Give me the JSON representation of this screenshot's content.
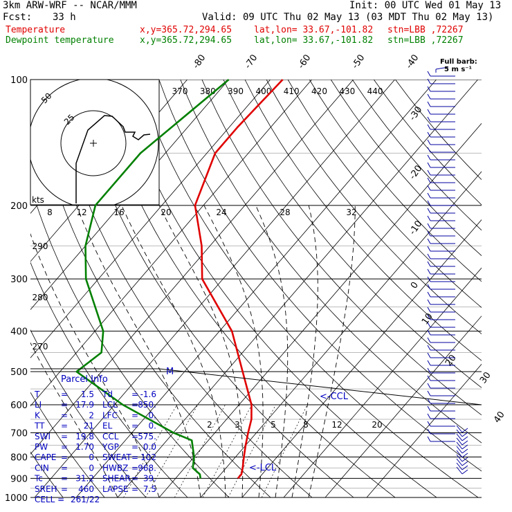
{
  "header": {
    "model": "3km ARW-WRF -- NCAR/MMM",
    "init": "Init: 00 UTC Wed 01 May 13",
    "fcst_label": "Fcst:",
    "fcst_value": "33 h",
    "valid": "Valid: 09 UTC Thu 02 May 13 (03 MDT Thu 02 May 13)",
    "temp_label": "Temperature",
    "dew_label": "Dewpoint temperature",
    "xy": "x,y=365.72,294.65",
    "latlon": "lat,lon= 33.67,-101.82",
    "stn": "stn=LBB ,72267"
  },
  "barb_legend": {
    "title": "Full barb:",
    "unit": "5 m s⁻¹"
  },
  "colors": {
    "temperature": "#e00000",
    "dewpoint": "#008000",
    "parcel": "#0000c0",
    "wind": "#0000a0"
  },
  "chart_data": {
    "type": "line",
    "title": "",
    "chart_kind": "skew-T log-P diagram",
    "pressure_levels": [
      "100",
      "200",
      "300",
      "400",
      "500",
      "600",
      "700",
      "800",
      "900",
      "1000"
    ],
    "isotherm_labels": [
      "-80",
      "-70",
      "-60",
      "-50",
      "-40",
      "-30",
      "-20",
      "-10",
      "0",
      "10",
      "20",
      "30",
      "40"
    ],
    "theta_labels": [
      "370",
      "380",
      "390",
      "400",
      "410",
      "420",
      "430",
      "440"
    ],
    "theta_left_labels": [
      "290",
      "280",
      "270"
    ],
    "mixing_ratio_labels": [
      "2",
      "3",
      "5",
      "8",
      "12",
      "20"
    ],
    "hodograph": {
      "speed_unit": "kts",
      "ring_labels": [
        "25",
        "50"
      ],
      "x_tick_labels": [
        "8",
        "12",
        "16",
        "20",
        "24",
        "28",
        "32"
      ]
    },
    "series": [
      {
        "name": "Temperature",
        "p": [
          100,
          130,
          150,
          200,
          250,
          300,
          400,
          500,
          600,
          650,
          700,
          750,
          800,
          850,
          880,
          900
        ],
        "t": [
          -57,
          -58,
          -58,
          -52,
          -42,
          -35,
          -17,
          -6,
          3,
          6,
          8,
          10,
          12,
          14,
          15,
          15
        ]
      },
      {
        "name": "Dewpoint temperature",
        "p": [
          100,
          150,
          200,
          250,
          300,
          400,
          450,
          500,
          600,
          700,
          730,
          800,
          850,
          880,
          900
        ],
        "t": [
          -70,
          -76,
          -76,
          -70,
          -63,
          -48,
          -44,
          -46,
          -28,
          -10,
          -4,
          0,
          2,
          5,
          6
        ]
      }
    ],
    "annotations": [
      "<-CCL",
      "<-LCL",
      "M"
    ]
  },
  "parcel_info": {
    "title": "Parcel Info",
    "rows": [
      {
        "l1": "T",
        "v1": "1.5",
        "l2": "Td",
        "v2": "-1.6"
      },
      {
        "l1": "LI",
        "v1": "17.9",
        "l2": "LCL",
        "v2": "850."
      },
      {
        "l1": "K",
        "v1": "2",
        "l2": "LFC",
        "v2": "0."
      },
      {
        "l1": "TT",
        "v1": "21",
        "l2": "EL",
        "v2": "0."
      },
      {
        "l1": "SWI",
        "v1": "19.8",
        "l2": "CCL",
        "v2": "575."
      },
      {
        "l1": "PW",
        "v1": "1.70",
        "l2": "YGP",
        "v2": "0.0"
      },
      {
        "l1": "CAPE",
        "v1": "0",
        "l2": "SWEAT",
        "v2": "102"
      },
      {
        "l1": "CIN",
        "v1": "0",
        "l2": "HWBZ",
        "v2": "968."
      },
      {
        "l1": "Tc",
        "v1": "31.2",
        "l2": "SHEAR",
        "v2": "39."
      },
      {
        "l1": "SREH",
        "v1": "460",
        "l2": "LAPSE",
        "v2": "7.5"
      }
    ],
    "cell_label": "CELL =",
    "cell_value": "261/22"
  }
}
